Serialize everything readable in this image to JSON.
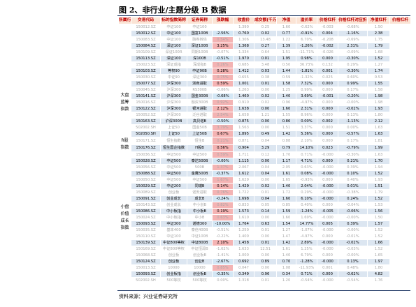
{
  "figure_title": "图 2、非行业/主题分级 B 数据",
  "source_note": "资料来源：兴业证券研究所",
  "colors": {
    "header_bg": "#fbe4d5",
    "header_text": "#c00000",
    "highlight_row": "#dce6f1",
    "positive_return": "#f4b3b3",
    "rule": "#1f3864"
  },
  "headers": [
    "所属行业",
    "交易代码",
    "标的指数简称",
    "证券简称",
    "涨跌幅",
    "收盘价",
    "成交额(千万)",
    "净值",
    "溢价率",
    "价格杠杆",
    "价格杠杆对应折算",
    "净值杠杆",
    "价格杠杆"
  ],
  "groups": [
    {
      "label": "",
      "rows": [
        {
          "style": "dim",
          "cells": [
            "150012.SZ",
            "中证100",
            "中证100",
            "",
            "1.390",
            "0.25",
            "1.60",
            "-0.62%",
            "-0.003",
            "-0.68%",
            "1.50"
          ]
        },
        {
          "style": "hl",
          "cells": [
            "150012.SZ",
            "中证100",
            "国富100B",
            "-2.56%",
            "0.760",
            "0.02",
            "0.77",
            "-0.91%",
            "0.004",
            "-1.16%",
            "2.38"
          ]
        },
        {
          "style": "dim",
          "cells": [
            "150083.SZ",
            "中证100",
            "融券转债",
            "0.54%",
            "1.306",
            "13.48",
            "1.22",
            "6.70%",
            "-0.208",
            "-0.69%",
            "1.75"
          ]
        },
        {
          "style": "hl",
          "cells": [
            "150084.SZ",
            "深证100",
            "深证100B",
            "3.25%",
            "1.368",
            "0.27",
            "1.39",
            "-1.26%",
            "-0.002",
            "2.31%",
            "1.79"
          ]
        },
        {
          "style": "dim",
          "cells": [
            "150109.SZ",
            "深证100R",
            "同期100B",
            "-0.07%",
            "1.334",
            "0.64",
            "1.51",
            "-11.71%",
            "-0.026",
            "-0.09%",
            "1.68"
          ]
        },
        {
          "style": "hl",
          "cells": [
            "150113.SZ",
            "深证100",
            "深100B",
            "-0.51%",
            "1.970",
            "0.01",
            "1.95",
            "0.98%",
            "0.000",
            "-0.30%",
            "1.52"
          ]
        },
        {
          "style": "dim",
          "cells": [
            "150023.SZ",
            "深证成指",
            "深成指B",
            "0.26%",
            "0.685",
            "3.48",
            "0.50",
            "36.73%",
            "0.132",
            "0.29%",
            "1.27"
          ]
        }
      ]
    },
    {
      "label": "大盘蓝筹指数",
      "rows": [
        {
          "style": "hl",
          "cells": [
            "150103.SZ",
            "等权90",
            "中证90B",
            "0.28%",
            "1.412",
            "0.03",
            "1.44",
            "-1.81%",
            "0.001",
            "-0.30%",
            "1.74"
          ]
        },
        {
          "style": "dim",
          "cells": [
            "150030.SZ",
            "中证90",
            "深证300",
            "0.75%",
            "0.655",
            "0.38",
            "0.59",
            "-1.32%",
            "0.025",
            "0.60%",
            "0.53"
          ]
        },
        {
          "style": "hl",
          "cells": [
            "150077.SZ",
            "沪深300",
            "浙商进取",
            "0.59%",
            "1.001",
            "0.01",
            "1.58",
            "7.32%",
            "0.000",
            "0.99%",
            "1.55"
          ]
        },
        {
          "style": "dim",
          "cells": [
            "150045.SZ",
            "沪深300",
            "RS300B",
            "-0.06%",
            "1.263",
            "0.00",
            "1.25",
            "0.99%",
            "0.000",
            "0.17%",
            "1.58"
          ]
        },
        {
          "style": "hl",
          "cells": [
            "150141.SZ",
            "沪深300",
            "国金300B",
            "-0.68%",
            "1.460",
            "0.02",
            "1.40",
            "3.69%",
            "-0.001",
            "-0.20%",
            "1.98"
          ]
        },
        {
          "style": "dim",
          "cells": [
            "150016.SZ",
            "沪深300",
            "融资300B",
            "0.92%",
            "0.910",
            "0.02",
            "0.96",
            "-4.97%",
            "0.000",
            "-0.00%",
            "1.98"
          ]
        },
        {
          "style": "hl",
          "cells": [
            "150122.SZ",
            "沪深300",
            "银河进取",
            "2.12%",
            "1.638",
            "0.00",
            "1.60",
            "2.31%",
            "0.000",
            "-0.02%",
            "1.93"
          ]
        },
        {
          "style": "dim",
          "cells": [
            "150052.SZ",
            "沪深300",
            "泛谷进取",
            "2.54%",
            "1.658",
            "1.21",
            "1.55",
            "8.96%",
            "0.000",
            "0.13%",
            "1.80"
          ]
        },
        {
          "style": "hl",
          "cells": [
            "150163.SZ",
            "沪深300B",
            "高贝塔B",
            "-0.50%",
            "0.875",
            "0.00",
            "0.86",
            "0.00%",
            "0.002",
            "-1.13%",
            "2.12"
          ]
        },
        {
          "style": "dim",
          "cells": [
            "502002.SH",
            "上证50",
            "国金50B",
            "3.79%",
            "1.563",
            "0.00",
            "1.51",
            "3.37%",
            "0.000",
            "0.00%",
            "1.63"
          ]
        },
        {
          "style": "hl",
          "cells": [
            "502050.SH",
            "上证50",
            "上证50B",
            "0.67%",
            "1.895",
            "0.49",
            "1.42",
            "5.36%",
            "0.000",
            "-0.57%",
            "1.63"
          ]
        }
      ]
    },
    {
      "label": "R股指数",
      "rows": [
        {
          "style": "dim",
          "cells": [
            "150171.SZ",
            "恒生指数",
            "恒生B",
            "0.21%",
            "0.871",
            "0.04",
            "0.88",
            "2.10%",
            "0.000",
            "0.17%",
            "1.81"
          ]
        },
        {
          "style": "hl",
          "cells": [
            "150176.SZ",
            "恒生国企指数",
            "H股B",
            "0.56%",
            "0.904",
            "3.29",
            "0.79",
            "14.10%",
            "0.023",
            "-0.79%",
            "1.99"
          ]
        }
      ]
    },
    {
      "label": "小盘价值成长指数",
      "rows": [
        {
          "style": "dim",
          "cells": [
            "150036.SZ",
            "中证500",
            "中证500",
            "0.59%",
            "1.711",
            "0.12",
            "1.70",
            "0.71%",
            "-0.000",
            "-0.30%",
            "1.63"
          ]
        },
        {
          "style": "hl",
          "cells": [
            "150028.SZ",
            "中证500",
            "泰达500B",
            "-0.00%",
            "1.115",
            "0.00",
            "1.17",
            "4.71%",
            "0.000",
            "0.21%",
            "1.70"
          ]
        },
        {
          "style": "dim",
          "cells": [
            "150056.SZ",
            "中证500",
            "500B",
            "1.37%",
            "2.067",
            "0.04",
            "2.05",
            "0.63%",
            "-0.000",
            "0.39%",
            "1.94"
          ]
        },
        {
          "style": "hl",
          "cells": [
            "150088.SZ",
            "中证500",
            "金鹰500B",
            "-0.37%",
            "1.612",
            "0.04",
            "1.61",
            "0.08%",
            "-0.000",
            "0.10%",
            "1.52"
          ]
        },
        {
          "style": "dim",
          "cells": [
            "150050.SZ",
            "中证500",
            "中证500",
            "1.67%",
            "1.629",
            "0.00",
            "1.65",
            "-0.93%",
            "0.000",
            "0.40%",
            "1.93"
          ]
        },
        {
          "style": "hl",
          "cells": [
            "150029.SZ",
            "中证200",
            "同瑞B",
            "0.14%",
            "1.429",
            "0.02",
            "1.40",
            "2.04%",
            "-0.000",
            "0.01%",
            "1.51"
          ]
        },
        {
          "style": "dim",
          "cells": [
            "150089.SZ",
            "创业板",
            "诺安进取",
            "0.76%",
            "1.722",
            "0.01",
            "1.72",
            "0.29%",
            "-0.000",
            "-0.38%",
            "1.79"
          ]
        },
        {
          "style": "hl",
          "cells": [
            "150091.SZ",
            "创业成长",
            "成长B",
            "-0.24%",
            "1.698",
            "0.04",
            "1.60",
            "6.10%",
            "-0.000",
            "0.24%",
            "1.52"
          ]
        },
        {
          "style": "dim",
          "cells": [
            "150143.SZ",
            "创业成长",
            "中小创B",
            "0.82%",
            "0.833",
            "0.05",
            "0.85",
            "0.40%",
            "0.000",
            "-0.04%",
            "1.53"
          ]
        },
        {
          "style": "hl",
          "cells": [
            "150086.SZ",
            "中小板指",
            "中小板B",
            "0.19%",
            "1.573",
            "0.14",
            "1.59",
            "-1.24%",
            "-0.005",
            "-0.06%",
            "1.56"
          ]
        },
        {
          "style": "dim",
          "cells": [
            "150024.SZ",
            "中小板指",
            "中小B",
            "0.63%",
            "1.610",
            "0.00",
            "1.60",
            "1.69%",
            "-0.000",
            "-0.00%",
            "1.50"
          ]
        },
        {
          "style": "hl",
          "cells": [
            "150093.SZ",
            "中证300",
            "诺德300",
            "-10.00%",
            "1.764",
            "0.63",
            "1.54",
            "14.77%",
            "0.005",
            "0.39%",
            "1.57"
          ]
        },
        {
          "style": "dim",
          "cells": [
            "150035.SZ",
            "基本400",
            "泰信400B",
            "-0.51%",
            "1.250",
            "0.01",
            "1.27",
            "-1.07%",
            "-0.000",
            "-0.00%",
            "1.52"
          ]
        },
        {
          "style": "dim",
          "cells": [
            "150110.SZ",
            "中证100",
            "中证100B",
            "-0.22%",
            "1.400",
            "0.00",
            "1.47",
            "-4.97%",
            "0.000",
            "-0.01%",
            "1.52"
          ]
        },
        {
          "style": "hl",
          "cells": [
            "150139.SZ",
            "中证800等权",
            "中证800B",
            "2.10%",
            "1.458",
            "0.01",
            "1.42",
            "2.89%",
            "-0.000",
            "-0.02%",
            "1.66"
          ]
        },
        {
          "style": "dim",
          "cells": [
            "150169.SZ",
            "中证800等权",
            "中证恒润B",
            "-1.62%",
            "1.633",
            "12.51",
            "1.61",
            "1.25%",
            "-0.000",
            "-0.03%",
            "1.52"
          ]
        },
        {
          "style": "dim",
          "cells": [
            "150068.SZ",
            "创业板",
            "创业板B",
            "-1.41%",
            "1.000",
            "0.00",
            "1.40",
            "6.79%",
            "0.000",
            "-0.00%",
            "1.65"
          ]
        },
        {
          "style": "hl",
          "cells": [
            "150124.SZ",
            "创业板",
            "创业B",
            "-2.67%",
            "0.692",
            "0.89",
            "0.70",
            "-1.28%",
            "-0.000",
            "0.13%",
            "1.97"
          ]
        },
        {
          "style": "dim",
          "cells": [
            "150013.SZ",
            "10000",
            "10000",
            "0.85%",
            "0.047",
            "0.00",
            "1.08",
            "-11.93%",
            "0.001",
            "0.48%",
            "1.80"
          ]
        },
        {
          "style": "hl",
          "cells": [
            "150093.SZ",
            "创业板指",
            "创业板B",
            "-0.35%",
            "0.349",
            "0.96",
            "0.34",
            "0.71%",
            "0.000",
            "-0.62%",
            "4.82"
          ]
        },
        {
          "style": "dim",
          "cells": [
            "502002.SH",
            "500等权",
            "500等权",
            "0.00%",
            "1.318",
            "0.01",
            "1.20",
            "-0.54%",
            "-0.000",
            "-0.54%",
            "1.76"
          ]
        }
      ]
    }
  ]
}
